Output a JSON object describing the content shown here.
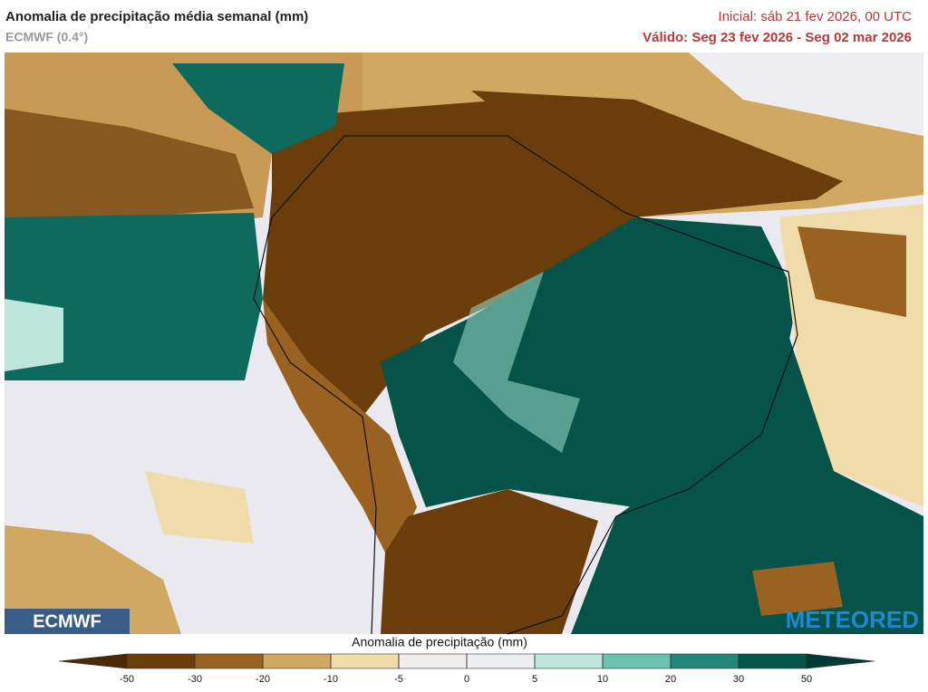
{
  "header": {
    "title": "Anomalia de precipitação média semanal (mm)",
    "model": "ECMWF (0.4°)",
    "initial": "Inicial:  sáb 21 fev 2026, 00 UTC",
    "valid": "Válido: Seg 23 fev 2026 - Seg 02 mar 2026"
  },
  "logos": {
    "left": "ECMWF",
    "right": "METEORED"
  },
  "legend": {
    "title": "Anomalia de precipitação (mm)",
    "ticks": [
      -50,
      -30,
      -20,
      -10,
      -5,
      0,
      5,
      10,
      20,
      30,
      50
    ],
    "colors": [
      "#4a2a05",
      "#6b3d0a",
      "#9a6220",
      "#d1a862",
      "#f0dcaa",
      "#f2ecea",
      "#eceef4",
      "#bfe6dc",
      "#6cc2b0",
      "#23867a",
      "#06534a",
      "#003a33"
    ]
  }
}
